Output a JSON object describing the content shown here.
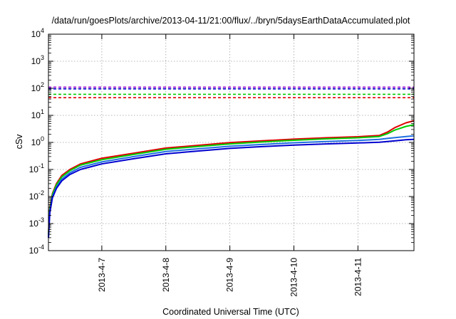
{
  "chart_data": {
    "type": "line",
    "title": "/data/run/goesPlots/archive/2013-04-11/21:00/flux/../bryn/5daysEarthDataAccumulated.plot",
    "xlabel": "Coordinated Universal Time (UTC)",
    "ylabel": "cSv",
    "yscale": "log",
    "ylim": [
      0.0001,
      10000
    ],
    "xlim": [
      "2013-04-06T04:00",
      "2013-04-11T21:00"
    ],
    "grid": true,
    "x_ticks": [
      {
        "x": "2013-04-07T00:00",
        "label": "2013-4-7"
      },
      {
        "x": "2013-04-08T00:00",
        "label": "2013-4-8"
      },
      {
        "x": "2013-04-09T00:00",
        "label": "2013-4-9"
      },
      {
        "x": "2013-04-10T00:00",
        "label": "2013-4-10"
      },
      {
        "x": "2013-04-11T00:00",
        "label": "2013-4-11"
      }
    ],
    "y_ticks": [
      {
        "value": 0.0001,
        "base": "10",
        "exp": "-4"
      },
      {
        "value": 0.001,
        "base": "10",
        "exp": "-3"
      },
      {
        "value": 0.01,
        "base": "10",
        "exp": "-2"
      },
      {
        "value": 0.1,
        "base": "10",
        "exp": "-1"
      },
      {
        "value": 1,
        "base": "10",
        "exp": "0"
      },
      {
        "value": 10,
        "base": "10",
        "exp": "1"
      },
      {
        "value": 100,
        "base": "10",
        "exp": "2"
      },
      {
        "value": 1000,
        "base": "10",
        "exp": "3"
      },
      {
        "value": 10000,
        "base": "10",
        "exp": "4"
      }
    ],
    "series": [
      {
        "color": "#e00000",
        "style": "solid",
        "points": [
          [
            "2013-04-06T04:00",
            0.0004
          ],
          [
            "2013-04-06T04:30",
            0.004
          ],
          [
            "2013-04-06T05:30",
            0.013
          ],
          [
            "2013-04-06T07:00",
            0.03
          ],
          [
            "2013-04-06T09:00",
            0.06
          ],
          [
            "2013-04-06T12:00",
            0.1
          ],
          [
            "2013-04-06T16:00",
            0.16
          ],
          [
            "2013-04-07T00:00",
            0.26
          ],
          [
            "2013-04-07T12:00",
            0.4
          ],
          [
            "2013-04-08T00:00",
            0.62
          ],
          [
            "2013-04-08T12:00",
            0.78
          ],
          [
            "2013-04-09T00:00",
            0.98
          ],
          [
            "2013-04-09T12:00",
            1.14
          ],
          [
            "2013-04-10T00:00",
            1.32
          ],
          [
            "2013-04-10T12:00",
            1.48
          ],
          [
            "2013-04-11T00:00",
            1.62
          ],
          [
            "2013-04-11T08:00",
            1.8
          ],
          [
            "2013-04-11T11:00",
            2.4
          ],
          [
            "2013-04-11T14:00",
            3.6
          ],
          [
            "2013-04-11T18:00",
            5.3
          ],
          [
            "2013-04-11T21:00",
            6.3
          ]
        ]
      },
      {
        "color": "#00cc00",
        "style": "solid",
        "points": [
          [
            "2013-04-06T04:00",
            0.0004
          ],
          [
            "2013-04-06T04:30",
            0.0035
          ],
          [
            "2013-04-06T05:30",
            0.012
          ],
          [
            "2013-04-06T07:00",
            0.027
          ],
          [
            "2013-04-06T09:00",
            0.053
          ],
          [
            "2013-04-06T12:00",
            0.09
          ],
          [
            "2013-04-06T16:00",
            0.145
          ],
          [
            "2013-04-07T00:00",
            0.23
          ],
          [
            "2013-04-07T12:00",
            0.36
          ],
          [
            "2013-04-08T00:00",
            0.56
          ],
          [
            "2013-04-08T12:00",
            0.71
          ],
          [
            "2013-04-09T00:00",
            0.88
          ],
          [
            "2013-04-09T12:00",
            1.04
          ],
          [
            "2013-04-10T00:00",
            1.2
          ],
          [
            "2013-04-10T12:00",
            1.35
          ],
          [
            "2013-04-11T00:00",
            1.48
          ],
          [
            "2013-04-11T08:00",
            1.65
          ],
          [
            "2013-04-11T11:00",
            2.1
          ],
          [
            "2013-04-11T14:00",
            2.9
          ],
          [
            "2013-04-11T18:00",
            3.9
          ],
          [
            "2013-04-11T21:00",
            4.5
          ]
        ]
      },
      {
        "color": "#1f6fe0",
        "style": "solid",
        "points": [
          [
            "2013-04-06T04:00",
            0.0003
          ],
          [
            "2013-04-06T04:30",
            0.003
          ],
          [
            "2013-04-06T05:30",
            0.01
          ],
          [
            "2013-04-06T07:00",
            0.022
          ],
          [
            "2013-04-06T09:00",
            0.044
          ],
          [
            "2013-04-06T12:00",
            0.075
          ],
          [
            "2013-04-06T16:00",
            0.12
          ],
          [
            "2013-04-07T00:00",
            0.19
          ],
          [
            "2013-04-07T12:00",
            0.3
          ],
          [
            "2013-04-08T00:00",
            0.46
          ],
          [
            "2013-04-08T12:00",
            0.58
          ],
          [
            "2013-04-09T00:00",
            0.72
          ],
          [
            "2013-04-09T12:00",
            0.84
          ],
          [
            "2013-04-10T00:00",
            0.97
          ],
          [
            "2013-04-10T12:00",
            1.08
          ],
          [
            "2013-04-11T00:00",
            1.18
          ],
          [
            "2013-04-11T08:00",
            1.3
          ],
          [
            "2013-04-11T11:00",
            1.4
          ],
          [
            "2013-04-11T14:00",
            1.5
          ],
          [
            "2013-04-11T18:00",
            1.65
          ],
          [
            "2013-04-11T21:00",
            1.75
          ]
        ]
      },
      {
        "color": "#0000d0",
        "style": "solid",
        "points": [
          [
            "2013-04-06T04:00",
            0.0003
          ],
          [
            "2013-04-06T04:30",
            0.0025
          ],
          [
            "2013-04-06T05:30",
            0.009
          ],
          [
            "2013-04-06T07:00",
            0.02
          ],
          [
            "2013-04-06T09:00",
            0.038
          ],
          [
            "2013-04-06T12:00",
            0.065
          ],
          [
            "2013-04-06T16:00",
            0.1
          ],
          [
            "2013-04-07T00:00",
            0.16
          ],
          [
            "2013-04-07T12:00",
            0.25
          ],
          [
            "2013-04-08T00:00",
            0.38
          ],
          [
            "2013-04-08T12:00",
            0.48
          ],
          [
            "2013-04-09T00:00",
            0.6
          ],
          [
            "2013-04-09T12:00",
            0.7
          ],
          [
            "2013-04-10T00:00",
            0.8
          ],
          [
            "2013-04-10T12:00",
            0.88
          ],
          [
            "2013-04-11T00:00",
            0.95
          ],
          [
            "2013-04-11T08:00",
            1.02
          ],
          [
            "2013-04-11T11:00",
            1.08
          ],
          [
            "2013-04-11T14:00",
            1.15
          ],
          [
            "2013-04-11T18:00",
            1.25
          ],
          [
            "2013-04-11T21:00",
            1.3
          ]
        ]
      }
    ],
    "thresholds": [
      {
        "value": 110,
        "color": "#9400d3",
        "style": "dashed"
      },
      {
        "value": 95,
        "color": "#0000cc",
        "style": "dashed"
      },
      {
        "value": 60,
        "color": "#00cc00",
        "style": "dashed"
      },
      {
        "value": 45,
        "color": "#e00000",
        "style": "dashed"
      }
    ]
  }
}
